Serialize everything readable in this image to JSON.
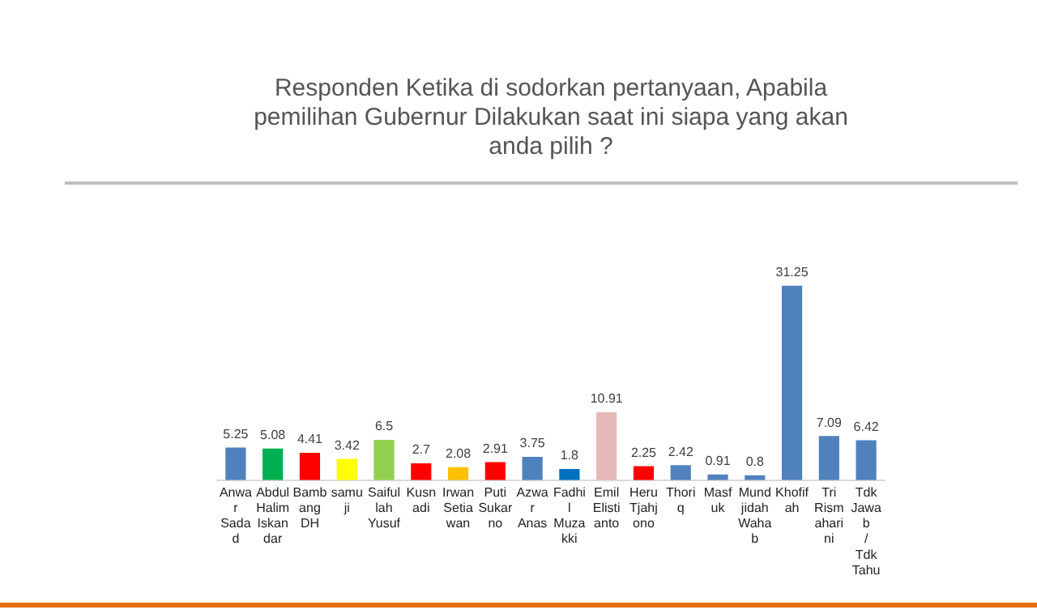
{
  "chart_data": {
    "type": "bar",
    "title": "Responden Ketika di sodorkan pertanyaan, Apabila pemilihan Gubernur Dilakukan saat ini siapa yang akan anda pilih ?",
    "categories": [
      "Anwar Sadad",
      "Abdul Halim Iskandar",
      "Bambang DH",
      "samuji",
      "Saifullah Yusuf",
      "Kusnadi",
      "Irwan Setiawan",
      "Puti Sukarno",
      "Azwar Anas",
      "Fadhil Muzakki",
      "Emil Elistianto",
      "Heru Tjahjono",
      "Thoriq",
      "Masfuk",
      "Mundjidah Wahab",
      "Khofifah",
      "Tri Rismaharini",
      "Tdk Jawab / Tdk Tahu"
    ],
    "values": [
      5.25,
      5.08,
      4.41,
      3.42,
      6.5,
      2.7,
      2.08,
      2.91,
      3.75,
      1.8,
      10.91,
      2.25,
      2.42,
      0.91,
      0.8,
      31.25,
      7.09,
      6.42
    ],
    "colors": [
      "#4f81bd",
      "#00b050",
      "#ff0000",
      "#ffff00",
      "#92d050",
      "#ff0000",
      "#ffc000",
      "#ff0000",
      "#4f81bd",
      "#0070c0",
      "#e6b8b7",
      "#ff0000",
      "#4f81bd",
      "#4f81bd",
      "#4f81bd",
      "#4f81bd",
      "#4f81bd",
      "#4f81bd"
    ],
    "data_labels": true,
    "grid": false,
    "legend": false
  }
}
